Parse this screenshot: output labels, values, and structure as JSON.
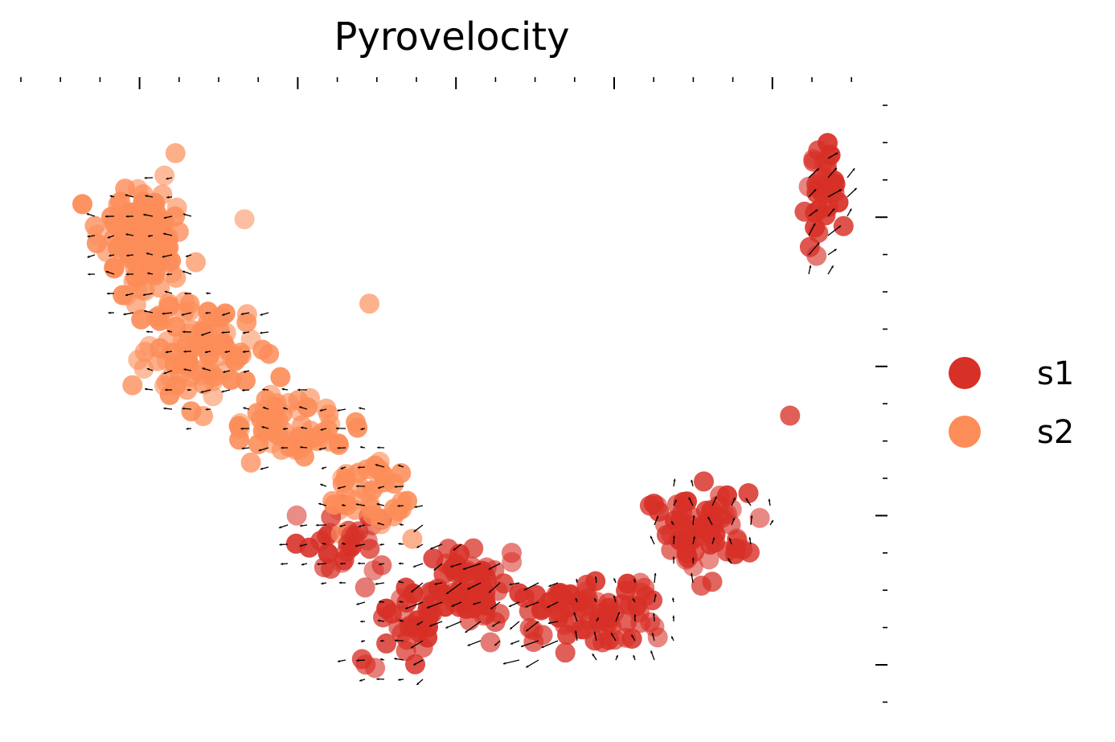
{
  "chart_data": {
    "type": "scatter",
    "title": "Pyrovelocity",
    "xlabel": "",
    "ylabel": "",
    "xlim": [
      0,
      1
    ],
    "ylim": [
      0,
      1
    ],
    "grid": false,
    "legend": {
      "placement": "right",
      "entries": [
        {
          "label": "s1",
          "color": "#d73027"
        },
        {
          "label": "s2",
          "color": "#fc8d59"
        }
      ]
    },
    "series": [
      {
        "name": "s1",
        "color": "#d73027",
        "regions": [
          {
            "cx": 0.96,
            "cy": 0.86,
            "sx": 0.018,
            "sy": 0.075,
            "n": 34
          },
          {
            "cx": 0.82,
            "cy": 0.28,
            "sx": 0.05,
            "sy": 0.06,
            "n": 70
          },
          {
            "cx": 0.67,
            "cy": 0.14,
            "sx": 0.07,
            "sy": 0.05,
            "n": 70
          },
          {
            "cx": 0.53,
            "cy": 0.19,
            "sx": 0.06,
            "sy": 0.06,
            "n": 60
          },
          {
            "cx": 0.44,
            "cy": 0.12,
            "sx": 0.035,
            "sy": 0.05,
            "n": 28
          },
          {
            "cx": 0.37,
            "cy": 0.25,
            "sx": 0.05,
            "sy": 0.05,
            "n": 28
          },
          {
            "cx": 0.39,
            "cy": 0.06,
            "sx": 0.01,
            "sy": 0.01,
            "n": 3
          },
          {
            "cx": 0.92,
            "cy": 0.48,
            "sx": 0.01,
            "sy": 0.01,
            "n": 1
          }
        ]
      },
      {
        "name": "s2",
        "color": "#fc8d59",
        "regions": [
          {
            "cx": 0.11,
            "cy": 0.76,
            "sx": 0.045,
            "sy": 0.075,
            "n": 140
          },
          {
            "cx": 0.19,
            "cy": 0.58,
            "sx": 0.06,
            "sy": 0.07,
            "n": 90
          },
          {
            "cx": 0.3,
            "cy": 0.44,
            "sx": 0.06,
            "sy": 0.06,
            "n": 55
          },
          {
            "cx": 0.4,
            "cy": 0.34,
            "sx": 0.06,
            "sy": 0.05,
            "n": 40
          },
          {
            "cx": 0.15,
            "cy": 0.92,
            "sx": 0.01,
            "sy": 0.01,
            "n": 1
          },
          {
            "cx": 0.24,
            "cy": 0.8,
            "sx": 0.01,
            "sy": 0.01,
            "n": 1
          },
          {
            "cx": 0.39,
            "cy": 0.66,
            "sx": 0.01,
            "sy": 0.01,
            "n": 1
          }
        ]
      }
    ]
  }
}
